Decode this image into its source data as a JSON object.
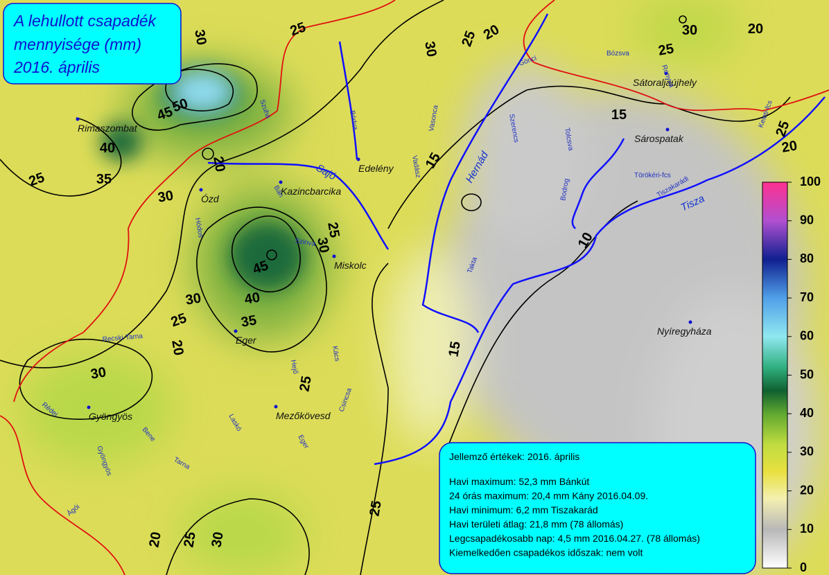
{
  "title": [
    "A lehullott csapadék",
    "mennyisége (mm)",
    "2016. április"
  ],
  "places": [
    "Rimaszombat",
    "Ózd",
    "Kazincbarcika",
    "Edelény",
    "Miskolc",
    "Eger",
    "Mezőkövesd",
    "Gyöngyös",
    "Sátoraljaújhely",
    "Sárospatak",
    "Nyíregyháza"
  ],
  "rivers": [
    "Sajó",
    "Hernád",
    "Tisza",
    "Bódva",
    "Szuha",
    "Bán",
    "Hódos",
    "Szinva",
    "Laskó",
    "Eger",
    "Tarna",
    "Recski-Tarna",
    "Bene",
    "Gyöngyös",
    "Rédei",
    "Vadász",
    "Vasonca",
    "Szerencs",
    "Takta",
    "Bodrog",
    "Tolcsva",
    "Ronyva",
    "Bózsva",
    "Gönci",
    "Hejő",
    "Kács",
    "Csincsa",
    "Ágói",
    "Keleti-fcs",
    "Tiszakarádi",
    "Törökéri-fcs"
  ],
  "contours": [
    30,
    25,
    50,
    45,
    40,
    35,
    25,
    30,
    20,
    25,
    30,
    45,
    40,
    35,
    30,
    25,
    20,
    30,
    25,
    25,
    20,
    25,
    30,
    15,
    15,
    10,
    15,
    20,
    25,
    30,
    30,
    25,
    20,
    25,
    20
  ],
  "legend": {
    "ticks": [
      0,
      10,
      20,
      30,
      40,
      50,
      60,
      70,
      80,
      90,
      100
    ]
  },
  "info": {
    "heading": "Jellemző értékek: 2016. április",
    "lines": [
      "Havi maximum: 52,3 mm Bánkút",
      "24 órás maximum: 20,4 mm Kány 2016.04.09.",
      "Havi minimum: 6,2 mm Tiszakarád",
      "Havi területi átlag: 21,8 mm (78 állomás)",
      "Legcsapadékosabb nap: 4,5 mm 2016.04.27. (78 állomás)",
      "Kiemelkedően csapadékos időszak: nem volt"
    ]
  }
}
